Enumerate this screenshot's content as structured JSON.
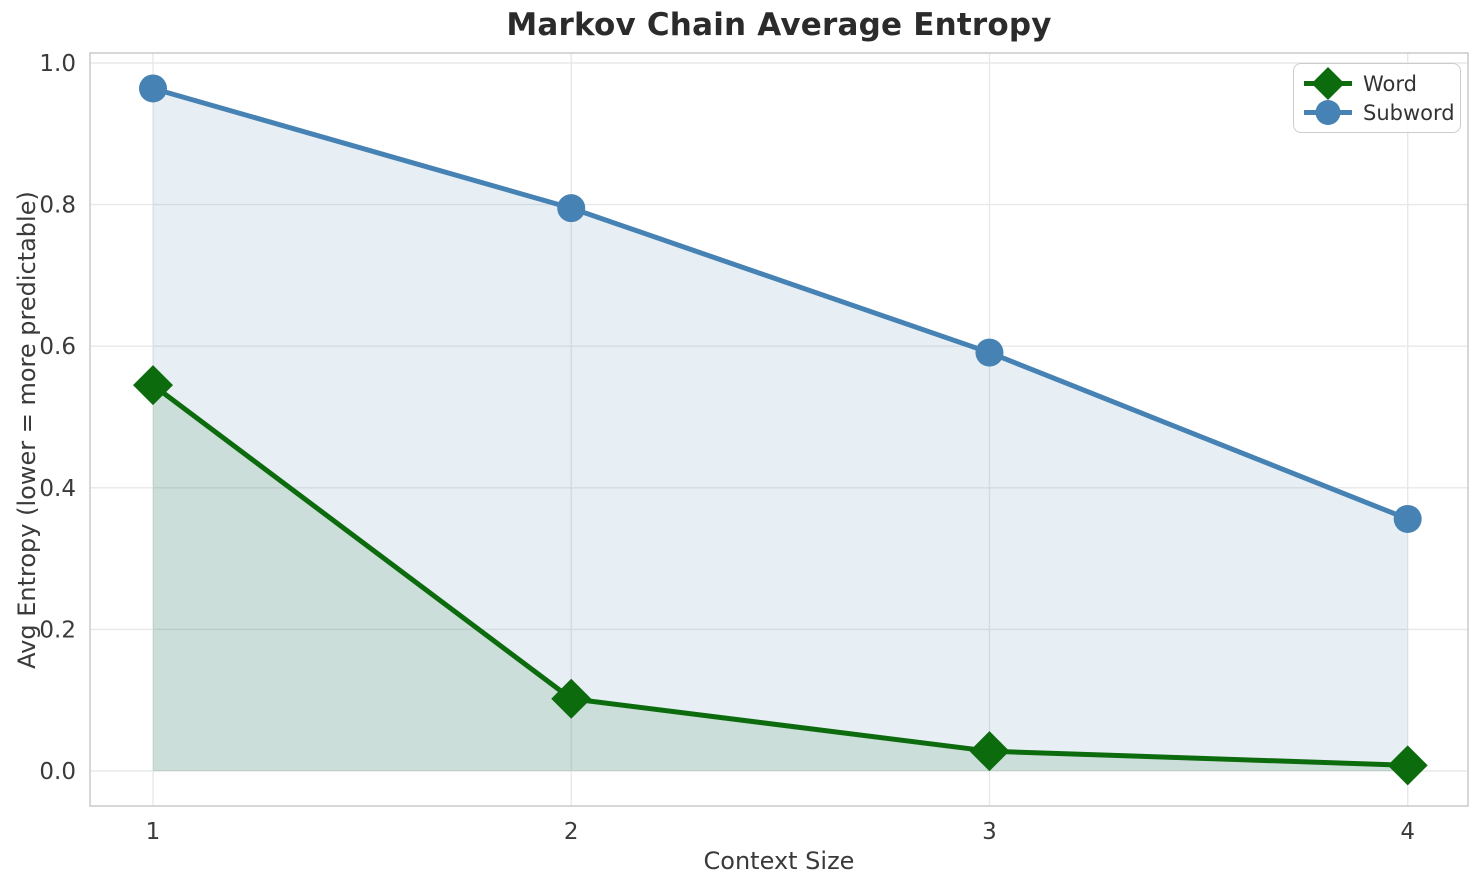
{
  "chart_data": {
    "type": "line",
    "title": "Markov Chain Average Entropy",
    "xlabel": "Context Size",
    "ylabel": "Avg Entropy (lower = more predictable)",
    "x": [
      1,
      2,
      3,
      4
    ],
    "xtick_labels": [
      "1",
      "2",
      "3",
      "4"
    ],
    "yticks": [
      0.0,
      0.2,
      0.4,
      0.6,
      0.8,
      1.0
    ],
    "ytick_labels": [
      "0.0",
      "0.2",
      "0.4",
      "0.6",
      "0.8",
      "1.0"
    ],
    "xlim": [
      0.85,
      4.145
    ],
    "ylim": [
      -0.05,
      1.014
    ],
    "grid": true,
    "legend_position": "upper right",
    "series": [
      {
        "name": "Word",
        "marker": "diamond",
        "color": "#0c6b0c",
        "fill_below": true,
        "fill_alpha": 0.13,
        "values": [
          0.545,
          0.102,
          0.028,
          0.008
        ]
      },
      {
        "name": "Subword",
        "marker": "circle",
        "color": "#4682b4",
        "fill_below": true,
        "fill_alpha": 0.13,
        "values": [
          0.964,
          0.795,
          0.591,
          0.356
        ]
      }
    ],
    "colors": {
      "background": "#ffffff",
      "grid": "#e8e8e8",
      "spine": "#cdcdcd",
      "tick_label": "#3a3a3a",
      "axis_label": "#3a3a3a",
      "title": "#2b2b2b"
    }
  }
}
